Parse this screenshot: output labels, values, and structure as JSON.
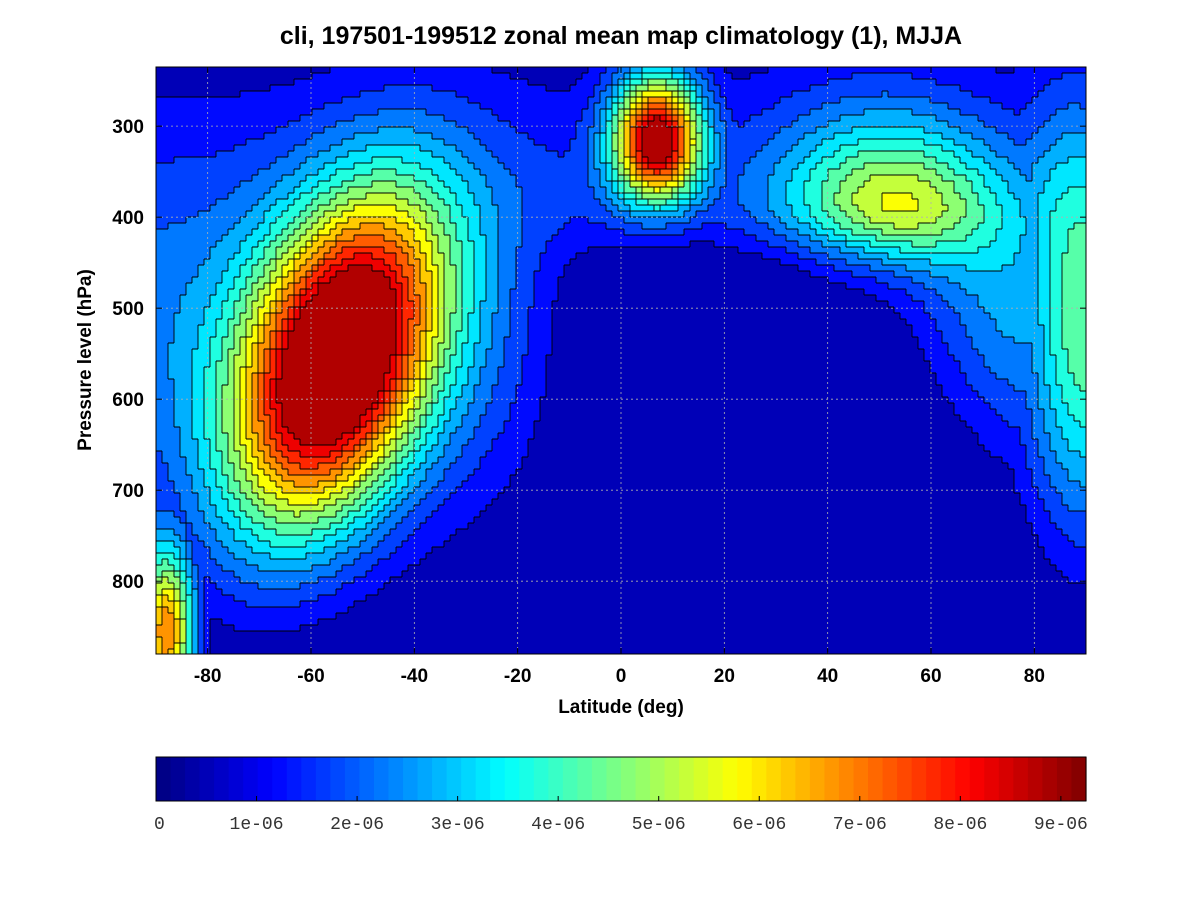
{
  "chart_data": {
    "type": "heatmap",
    "subtype": "filled-contour",
    "title": "cli, 197501-199512 zonal mean map climatology (1), MJJA",
    "xlabel": "Latitude (deg)",
    "ylabel": "Pressure level (hPa)",
    "xlim": [
      -90,
      90
    ],
    "ylim": [
      235,
      880
    ],
    "y_inverted": true,
    "grid": true,
    "x_ticks": [
      -80,
      -60,
      -40,
      -20,
      0,
      20,
      40,
      60,
      80
    ],
    "x_tick_labels": [
      "-80",
      "-60",
      "-40",
      "-20",
      "0",
      "20",
      "40",
      "60",
      "80"
    ],
    "y_ticks": [
      300,
      400,
      500,
      600,
      700,
      800
    ],
    "y_tick_labels": [
      "300",
      "400",
      "500",
      "600",
      "700",
      "800"
    ],
    "colorscale": "jet",
    "zlim": [
      0,
      9.25e-06
    ],
    "contour_levels": [
      0,
      1e-06,
      1.5e-06,
      2e-06,
      2.5e-06,
      3e-06,
      3.5e-06,
      4e-06,
      4.5e-06,
      5e-06,
      5.5e-06,
      6e-06,
      6.5e-06,
      7e-06,
      7.5e-06,
      8e-06,
      8.5e-06
    ],
    "colorbar": {
      "orientation": "horizontal",
      "tick_values": [
        0,
        1e-06,
        2e-06,
        3e-06,
        4e-06,
        5e-06,
        6e-06,
        7e-06,
        8e-06,
        9e-06
      ],
      "tick_labels": [
        "0",
        "1e-06",
        "2e-06",
        "3e-06",
        "4e-06",
        "5e-06",
        "6e-06",
        "7e-06",
        "8e-06",
        "9e-06"
      ]
    },
    "field_features": [
      {
        "latitude": -55,
        "pressure": 560,
        "peak": 9e-06,
        "sigma_lat": 13,
        "sigma_p": 130,
        "tilt": -0.45
      },
      {
        "latitude": 7,
        "pressure": 315,
        "peak": 8.3e-06,
        "sigma_lat": 6,
        "sigma_p": 50,
        "tilt": 0
      },
      {
        "latitude": 55,
        "pressure": 470,
        "peak": 7e-06,
        "sigma_lat": 15,
        "sigma_p": 105,
        "tilt": 0.2
      },
      {
        "latitude": -88,
        "pressure": 860,
        "peak": 6.6e-06,
        "sigma_lat": 4,
        "sigma_p": 70,
        "tilt": 0
      },
      {
        "latitude": 88,
        "pressure": 520,
        "peak": 3e-06,
        "sigma_lat": 8,
        "sigma_p": 160,
        "tilt": 0
      }
    ],
    "near_zero_region": {
      "latitude_range": [
        -15,
        75
      ],
      "pressure_above": 420
    }
  }
}
